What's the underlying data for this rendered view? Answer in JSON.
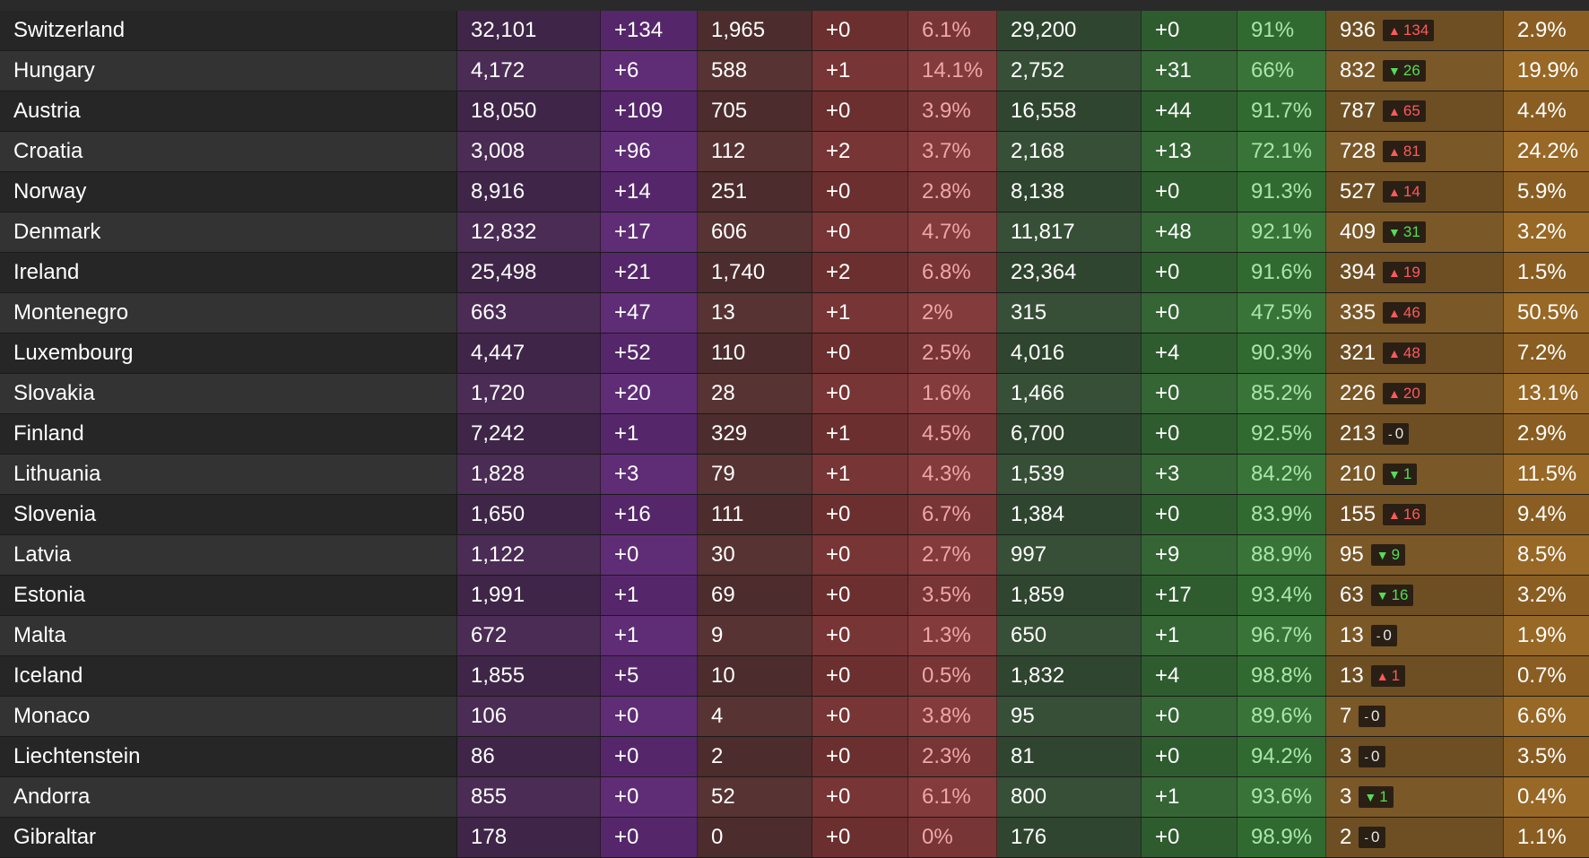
{
  "rows": [
    {
      "country": "Switzerland",
      "cases": "32,101",
      "new_cases": "+134",
      "deaths": "1,965",
      "new_deaths": "+0",
      "cfr": "6.1%",
      "recovered": "29,200",
      "new_recovered": "+0",
      "recovered_pct": "91%",
      "active": "936",
      "active_trend": "up",
      "active_change": "134",
      "active_pct": "2.9%"
    },
    {
      "country": "Hungary",
      "cases": "4,172",
      "new_cases": "+6",
      "deaths": "588",
      "new_deaths": "+1",
      "cfr": "14.1%",
      "recovered": "2,752",
      "new_recovered": "+31",
      "recovered_pct": "66%",
      "active": "832",
      "active_trend": "down",
      "active_change": "26",
      "active_pct": "19.9%"
    },
    {
      "country": "Austria",
      "cases": "18,050",
      "new_cases": "+109",
      "deaths": "705",
      "new_deaths": "+0",
      "cfr": "3.9%",
      "recovered": "16,558",
      "new_recovered": "+44",
      "recovered_pct": "91.7%",
      "active": "787",
      "active_trend": "up",
      "active_change": "65",
      "active_pct": "4.4%"
    },
    {
      "country": "Croatia",
      "cases": "3,008",
      "new_cases": "+96",
      "deaths": "112",
      "new_deaths": "+2",
      "cfr": "3.7%",
      "recovered": "2,168",
      "new_recovered": "+13",
      "recovered_pct": "72.1%",
      "active": "728",
      "active_trend": "up",
      "active_change": "81",
      "active_pct": "24.2%"
    },
    {
      "country": "Norway",
      "cases": "8,916",
      "new_cases": "+14",
      "deaths": "251",
      "new_deaths": "+0",
      "cfr": "2.8%",
      "recovered": "8,138",
      "new_recovered": "+0",
      "recovered_pct": "91.3%",
      "active": "527",
      "active_trend": "up",
      "active_change": "14",
      "active_pct": "5.9%"
    },
    {
      "country": "Denmark",
      "cases": "12,832",
      "new_cases": "+17",
      "deaths": "606",
      "new_deaths": "+0",
      "cfr": "4.7%",
      "recovered": "11,817",
      "new_recovered": "+48",
      "recovered_pct": "92.1%",
      "active": "409",
      "active_trend": "down",
      "active_change": "31",
      "active_pct": "3.2%"
    },
    {
      "country": "Ireland",
      "cases": "25,498",
      "new_cases": "+21",
      "deaths": "1,740",
      "new_deaths": "+2",
      "cfr": "6.8%",
      "recovered": "23,364",
      "new_recovered": "+0",
      "recovered_pct": "91.6%",
      "active": "394",
      "active_trend": "up",
      "active_change": "19",
      "active_pct": "1.5%"
    },
    {
      "country": "Montenegro",
      "cases": "663",
      "new_cases": "+47",
      "deaths": "13",
      "new_deaths": "+1",
      "cfr": "2%",
      "recovered": "315",
      "new_recovered": "+0",
      "recovered_pct": "47.5%",
      "active": "335",
      "active_trend": "up",
      "active_change": "46",
      "active_pct": "50.5%"
    },
    {
      "country": "Luxembourg",
      "cases": "4,447",
      "new_cases": "+52",
      "deaths": "110",
      "new_deaths": "+0",
      "cfr": "2.5%",
      "recovered": "4,016",
      "new_recovered": "+4",
      "recovered_pct": "90.3%",
      "active": "321",
      "active_trend": "up",
      "active_change": "48",
      "active_pct": "7.2%"
    },
    {
      "country": "Slovakia",
      "cases": "1,720",
      "new_cases": "+20",
      "deaths": "28",
      "new_deaths": "+0",
      "cfr": "1.6%",
      "recovered": "1,466",
      "new_recovered": "+0",
      "recovered_pct": "85.2%",
      "active": "226",
      "active_trend": "up",
      "active_change": "20",
      "active_pct": "13.1%"
    },
    {
      "country": "Finland",
      "cases": "7,242",
      "new_cases": "+1",
      "deaths": "329",
      "new_deaths": "+1",
      "cfr": "4.5%",
      "recovered": "6,700",
      "new_recovered": "+0",
      "recovered_pct": "92.5%",
      "active": "213",
      "active_trend": "flat",
      "active_change": "0",
      "active_pct": "2.9%"
    },
    {
      "country": "Lithuania",
      "cases": "1,828",
      "new_cases": "+3",
      "deaths": "79",
      "new_deaths": "+1",
      "cfr": "4.3%",
      "recovered": "1,539",
      "new_recovered": "+3",
      "recovered_pct": "84.2%",
      "active": "210",
      "active_trend": "down",
      "active_change": "1",
      "active_pct": "11.5%"
    },
    {
      "country": "Slovenia",
      "cases": "1,650",
      "new_cases": "+16",
      "deaths": "111",
      "new_deaths": "+0",
      "cfr": "6.7%",
      "recovered": "1,384",
      "new_recovered": "+0",
      "recovered_pct": "83.9%",
      "active": "155",
      "active_trend": "up",
      "active_change": "16",
      "active_pct": "9.4%"
    },
    {
      "country": "Latvia",
      "cases": "1,122",
      "new_cases": "+0",
      "deaths": "30",
      "new_deaths": "+0",
      "cfr": "2.7%",
      "recovered": "997",
      "new_recovered": "+9",
      "recovered_pct": "88.9%",
      "active": "95",
      "active_trend": "down",
      "active_change": "9",
      "active_pct": "8.5%"
    },
    {
      "country": "Estonia",
      "cases": "1,991",
      "new_cases": "+1",
      "deaths": "69",
      "new_deaths": "+0",
      "cfr": "3.5%",
      "recovered": "1,859",
      "new_recovered": "+17",
      "recovered_pct": "93.4%",
      "active": "63",
      "active_trend": "down",
      "active_change": "16",
      "active_pct": "3.2%"
    },
    {
      "country": "Malta",
      "cases": "672",
      "new_cases": "+1",
      "deaths": "9",
      "new_deaths": "+0",
      "cfr": "1.3%",
      "recovered": "650",
      "new_recovered": "+1",
      "recovered_pct": "96.7%",
      "active": "13",
      "active_trend": "flat",
      "active_change": "0",
      "active_pct": "1.9%"
    },
    {
      "country": "Iceland",
      "cases": "1,855",
      "new_cases": "+5",
      "deaths": "10",
      "new_deaths": "+0",
      "cfr": "0.5%",
      "recovered": "1,832",
      "new_recovered": "+4",
      "recovered_pct": "98.8%",
      "active": "13",
      "active_trend": "up",
      "active_change": "1",
      "active_pct": "0.7%"
    },
    {
      "country": "Monaco",
      "cases": "106",
      "new_cases": "+0",
      "deaths": "4",
      "new_deaths": "+0",
      "cfr": "3.8%",
      "recovered": "95",
      "new_recovered": "+0",
      "recovered_pct": "89.6%",
      "active": "7",
      "active_trend": "flat",
      "active_change": "0",
      "active_pct": "6.6%"
    },
    {
      "country": "Liechtenstein",
      "cases": "86",
      "new_cases": "+0",
      "deaths": "2",
      "new_deaths": "+0",
      "cfr": "2.3%",
      "recovered": "81",
      "new_recovered": "+0",
      "recovered_pct": "94.2%",
      "active": "3",
      "active_trend": "flat",
      "active_change": "0",
      "active_pct": "3.5%"
    },
    {
      "country": "Andorra",
      "cases": "855",
      "new_cases": "+0",
      "deaths": "52",
      "new_deaths": "+0",
      "cfr": "6.1%",
      "recovered": "800",
      "new_recovered": "+1",
      "recovered_pct": "93.6%",
      "active": "3",
      "active_trend": "down",
      "active_change": "1",
      "active_pct": "0.4%"
    },
    {
      "country": "Gibraltar",
      "cases": "178",
      "new_cases": "+0",
      "deaths": "0",
      "new_deaths": "+0",
      "cfr": "0%",
      "recovered": "176",
      "new_recovered": "+0",
      "recovered_pct": "98.9%",
      "active": "2",
      "active_trend": "flat",
      "active_change": "0",
      "active_pct": "1.1%"
    }
  ],
  "trend_icons": {
    "up": "arrow-up-icon",
    "down": "arrow-down-icon",
    "flat": "dash-icon"
  }
}
